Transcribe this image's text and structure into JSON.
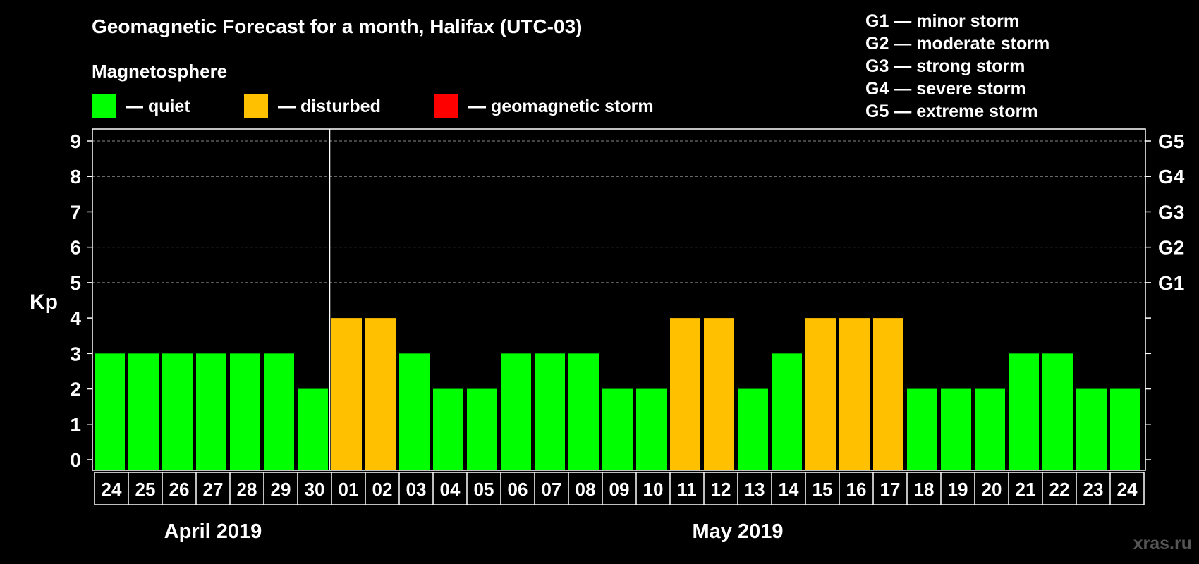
{
  "chart_data": {
    "type": "bar",
    "title": "Geomagnetic Forecast for a month, Halifax (UTC-03)",
    "subtitle": "Magnetosphere",
    "ylabel": "Kp",
    "ylim": [
      0,
      9
    ],
    "yticks": [
      "0",
      "1",
      "2",
      "3",
      "4",
      "5",
      "6",
      "7",
      "8",
      "9"
    ],
    "right_axis_labels": [
      {
        "kp": 5,
        "label": "G1"
      },
      {
        "kp": 6,
        "label": "G2"
      },
      {
        "kp": 7,
        "label": "G3"
      },
      {
        "kp": 8,
        "label": "G4"
      },
      {
        "kp": 9,
        "label": "G5"
      }
    ],
    "categories": [
      "24",
      "25",
      "26",
      "27",
      "28",
      "29",
      "30",
      "01",
      "02",
      "03",
      "04",
      "05",
      "06",
      "07",
      "08",
      "09",
      "10",
      "11",
      "12",
      "13",
      "14",
      "15",
      "16",
      "17",
      "18",
      "19",
      "20",
      "21",
      "22",
      "23",
      "24"
    ],
    "values": [
      3,
      3,
      3,
      3,
      3,
      3,
      2,
      4,
      4,
      3,
      2,
      2,
      3,
      3,
      3,
      2,
      2,
      4,
      4,
      2,
      3,
      4,
      4,
      4,
      2,
      2,
      2,
      3,
      3,
      2,
      2
    ],
    "status": [
      "quiet",
      "quiet",
      "quiet",
      "quiet",
      "quiet",
      "quiet",
      "quiet",
      "disturbed",
      "disturbed",
      "quiet",
      "quiet",
      "quiet",
      "quiet",
      "quiet",
      "quiet",
      "quiet",
      "quiet",
      "disturbed",
      "disturbed",
      "quiet",
      "quiet",
      "disturbed",
      "disturbed",
      "disturbed",
      "quiet",
      "quiet",
      "quiet",
      "quiet",
      "quiet",
      "quiet",
      "quiet"
    ],
    "months": [
      {
        "label": "April 2019",
        "start_index": 0,
        "count": 7
      },
      {
        "label": "May 2019",
        "start_index": 7,
        "count": 24
      }
    ],
    "legend": [
      {
        "key": "quiet",
        "label": "— quiet",
        "color": "#00ff00"
      },
      {
        "key": "disturbed",
        "label": "— disturbed",
        "color": "#ffc000"
      },
      {
        "key": "storm",
        "label": "— geomagnetic storm",
        "color": "#ff0000"
      }
    ],
    "storm_scale": [
      "G1 — minor storm",
      "G2 — moderate storm",
      "G3 — strong storm",
      "G4 — severe storm",
      "G5 — extreme storm"
    ]
  },
  "watermark": "xras.ru"
}
